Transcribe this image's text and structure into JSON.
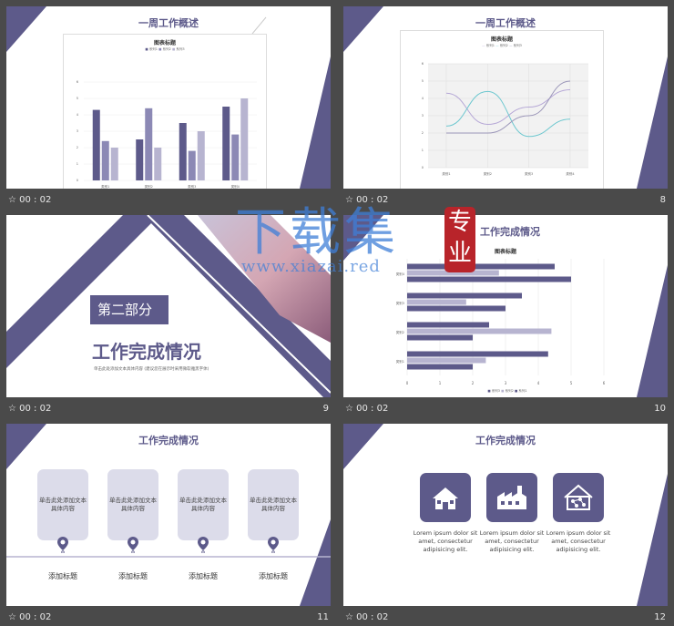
{
  "slides": [
    {
      "number": "",
      "time": "00 : 02",
      "title": "一周工作概述"
    },
    {
      "number": "8",
      "time": "00 : 02",
      "title": "一周工作概述"
    },
    {
      "number": "9",
      "time": "00 : 02",
      "title": "第二部分",
      "subtitle": "工作完成情况",
      "note": "单击此处添加文本具体内容 (建议您在展示时采用微软雅黑字体)"
    },
    {
      "number": "10",
      "time": "00 : 02",
      "title": "工作完成情况"
    },
    {
      "number": "11",
      "time": "00 : 02",
      "title": "工作完成情况",
      "cards": [
        "单击此处添加文本具体内容",
        "单击此处添加文本具体内容",
        "单击此处添加文本具体内容",
        "单击此处添加文本具体内容"
      ],
      "captions": [
        "添加标题",
        "添加标题",
        "添加标题",
        "添加标题"
      ]
    },
    {
      "number": "12",
      "time": "00 : 02",
      "title": "工作完成情况",
      "items": [
        "Lorem ipsum dolor sit amet, consectetur adipisicing elit.",
        "Lorem ipsum dolor sit amet, consectetur adipisicing elit.",
        "Lorem ipsum dolor sit amet, consectetur adipisicing elit."
      ],
      "icons": [
        "house-icon",
        "factory-icon",
        "network-house-icon"
      ]
    }
  ],
  "watermark": {
    "text": "下载集",
    "seal": "专业",
    "url": "www.xiazai.red"
  },
  "colors": {
    "accent": "#5d5a8a",
    "accent_light": "#b7b4d0",
    "teal": "#6cc7cf",
    "lavender": "#b5a7d6"
  },
  "chart_data": [
    {
      "type": "bar",
      "title": "图表标题",
      "categories": [
        "类别1",
        "类别2",
        "类别3",
        "类别4"
      ],
      "series": [
        {
          "name": "系列1",
          "values": [
            4.3,
            2.5,
            3.5,
            4.5
          ]
        },
        {
          "name": "系列2",
          "values": [
            2.4,
            4.4,
            1.8,
            2.8
          ]
        },
        {
          "name": "系列3",
          "values": [
            2,
            2,
            3,
            5
          ]
        }
      ],
      "ylim": [
        0,
        6
      ],
      "yticks": [
        "0",
        "1",
        "2",
        "3",
        "4",
        "5",
        "6"
      ],
      "legend": [
        "系列1",
        "系列2",
        "系列3"
      ]
    },
    {
      "type": "line",
      "title": "图表标题",
      "categories": [
        "类别1",
        "类别2",
        "类别3",
        "类别4"
      ],
      "series": [
        {
          "name": "系列1",
          "values": [
            4.3,
            2.5,
            3.5,
            4.5
          ]
        },
        {
          "name": "系列2",
          "values": [
            2.4,
            4.4,
            1.8,
            2.8
          ]
        },
        {
          "name": "系列3",
          "values": [
            2,
            2,
            3,
            5
          ]
        }
      ],
      "ylim": [
        0,
        6
      ],
      "yticks": [
        "0",
        "1",
        "2",
        "3",
        "4",
        "5",
        "6"
      ],
      "legend": [
        "系列1",
        "系列2",
        "系列3"
      ]
    },
    {
      "type": "bar",
      "orientation": "horizontal",
      "title": "图表标题",
      "categories": [
        "类别1",
        "类别2",
        "类别3",
        "类别4"
      ],
      "series": [
        {
          "name": "系列1",
          "values": [
            4.3,
            2.5,
            3.5,
            4.5
          ]
        },
        {
          "name": "系列2",
          "values": [
            2.4,
            4.4,
            1.8,
            2.8
          ]
        },
        {
          "name": "系列3",
          "values": [
            2,
            2,
            3,
            5
          ]
        }
      ],
      "xlim": [
        0,
        6
      ],
      "xticks": [
        "0",
        "1",
        "2",
        "3",
        "4",
        "5",
        "6"
      ],
      "legend": [
        "系列1",
        "系列2",
        "系列3"
      ]
    }
  ]
}
